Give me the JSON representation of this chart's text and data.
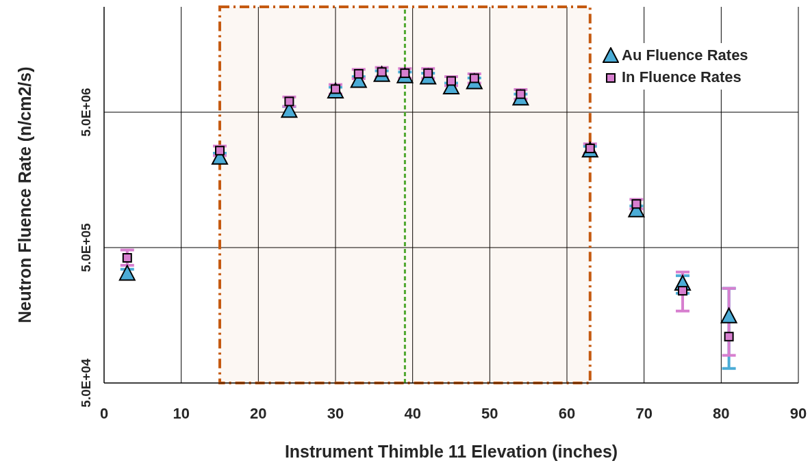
{
  "chart_data": {
    "type": "scatter",
    "xlabel": "Instrument Thimble 11 Elevation (inches)",
    "ylabel": "Neutron Fluence Rate (n/cm2/s)",
    "log": "y",
    "grid": true,
    "legend": "top right",
    "xlim": [
      0,
      90
    ],
    "xticks": [
      0,
      10,
      20,
      30,
      40,
      50,
      60,
      70,
      80,
      90
    ],
    "ylim": [
      50000,
      30000000
    ],
    "yticks": [
      {
        "value": 50000,
        "label": "5.0E+04"
      },
      {
        "value": 500000,
        "label": "5.0E+05"
      },
      {
        "value": 5000000,
        "label": "5.0E+06"
      }
    ],
    "x": [
      3,
      15,
      24,
      30,
      33,
      36,
      39,
      42,
      45,
      48,
      54,
      63,
      69,
      75,
      81
    ],
    "series": [
      {
        "name": "Au Fluence Rates",
        "color": "#4bacd6",
        "marker": "triangle",
        "values": [
          320000,
          2300000,
          5100000,
          7100000,
          8500000,
          9400000,
          9200000,
          9000000,
          7600000,
          8300000,
          6300000,
          2600000,
          940000,
          270000,
          155000
        ],
        "errors": [
          26000,
          190000,
          400000,
          550000,
          650000,
          700000,
          700000,
          700000,
          600000,
          650000,
          500000,
          200000,
          75000,
          [
            230000,
            310000
          ],
          [
            64000,
            250000
          ]
        ]
      },
      {
        "name": "In Fluence Rates",
        "color": "#d77fcf",
        "marker": "square",
        "values": [
          420000,
          2600000,
          6000000,
          7400000,
          9600000,
          9900000,
          9700000,
          9700000,
          8500000,
          8900000,
          6800000,
          2700000,
          1050000,
          240000,
          110000
        ],
        "errors": [
          [
            370000,
            480000
          ],
          210000,
          480000,
          600000,
          750000,
          800000,
          800000,
          800000,
          650000,
          700000,
          550000,
          220000,
          85000,
          [
            170000,
            330000
          ],
          [
            80000,
            250000
          ]
        ]
      }
    ],
    "ref_lines": [
      {
        "axis": "x",
        "value": 39,
        "color": "#4ea72e",
        "line_style": "dashed"
      }
    ],
    "bands": [
      {
        "axis": "x",
        "from": 15,
        "to": 63,
        "color": "#c55a11"
      }
    ]
  }
}
